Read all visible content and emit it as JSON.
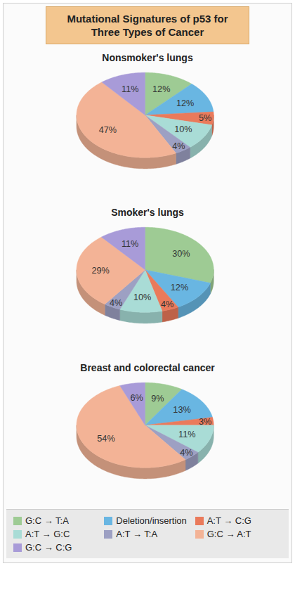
{
  "title": "Mutational Signatures of p53 for Three Types of Cancer",
  "legend": "bottom",
  "chart_data": [
    {
      "type": "pie",
      "title": "Nonsmoker's lungs",
      "categories": [
        "G:C → T:A",
        "Deletion/insertion",
        "A:T → C:G",
        "A:T → G:C",
        "A:T → T:A",
        "G:C → A:T",
        "G:C → C:G"
      ],
      "values": [
        12,
        12,
        5,
        10,
        4,
        47,
        11
      ],
      "value_labels": [
        "12%",
        "12%",
        "5%",
        "10%",
        "4%",
        "47%",
        "11%"
      ],
      "colors": [
        "#9ecb94",
        "#69b6e2",
        "#ea7a5b",
        "#a9dcd6",
        "#9da0c3",
        "#f3b396",
        "#a89bd8"
      ],
      "data_labels": true
    },
    {
      "type": "pie",
      "title": "Smoker's lungs",
      "categories": [
        "G:C → T:A",
        "Deletion/insertion",
        "A:T → C:G",
        "A:T → G:C",
        "A:T → T:A",
        "G:C → A:T",
        "G:C → C:G"
      ],
      "values": [
        30,
        12,
        4,
        10,
        4,
        29,
        11
      ],
      "value_labels": [
        "30%",
        "12%",
        "4%",
        "10%",
        "4%",
        "29%",
        "11%"
      ],
      "colors": [
        "#9ecb94",
        "#69b6e2",
        "#ea7a5b",
        "#a9dcd6",
        "#9da0c3",
        "#f3b396",
        "#a89bd8"
      ],
      "data_labels": true
    },
    {
      "type": "pie",
      "title": "Breast and colorectal cancer",
      "categories": [
        "G:C → T:A",
        "Deletion/insertion",
        "A:T → C:G",
        "A:T → G:C",
        "A:T → T:A",
        "G:C → A:T",
        "G:C → C:G"
      ],
      "values": [
        9,
        13,
        3,
        11,
        4,
        54,
        6
      ],
      "value_labels": [
        "9%",
        "13%",
        "3%",
        "11%",
        "4%",
        "54%",
        "6%"
      ],
      "colors": [
        "#9ecb94",
        "#69b6e2",
        "#ea7a5b",
        "#a9dcd6",
        "#9da0c3",
        "#f3b396",
        "#a89bd8"
      ],
      "data_labels": true
    }
  ]
}
